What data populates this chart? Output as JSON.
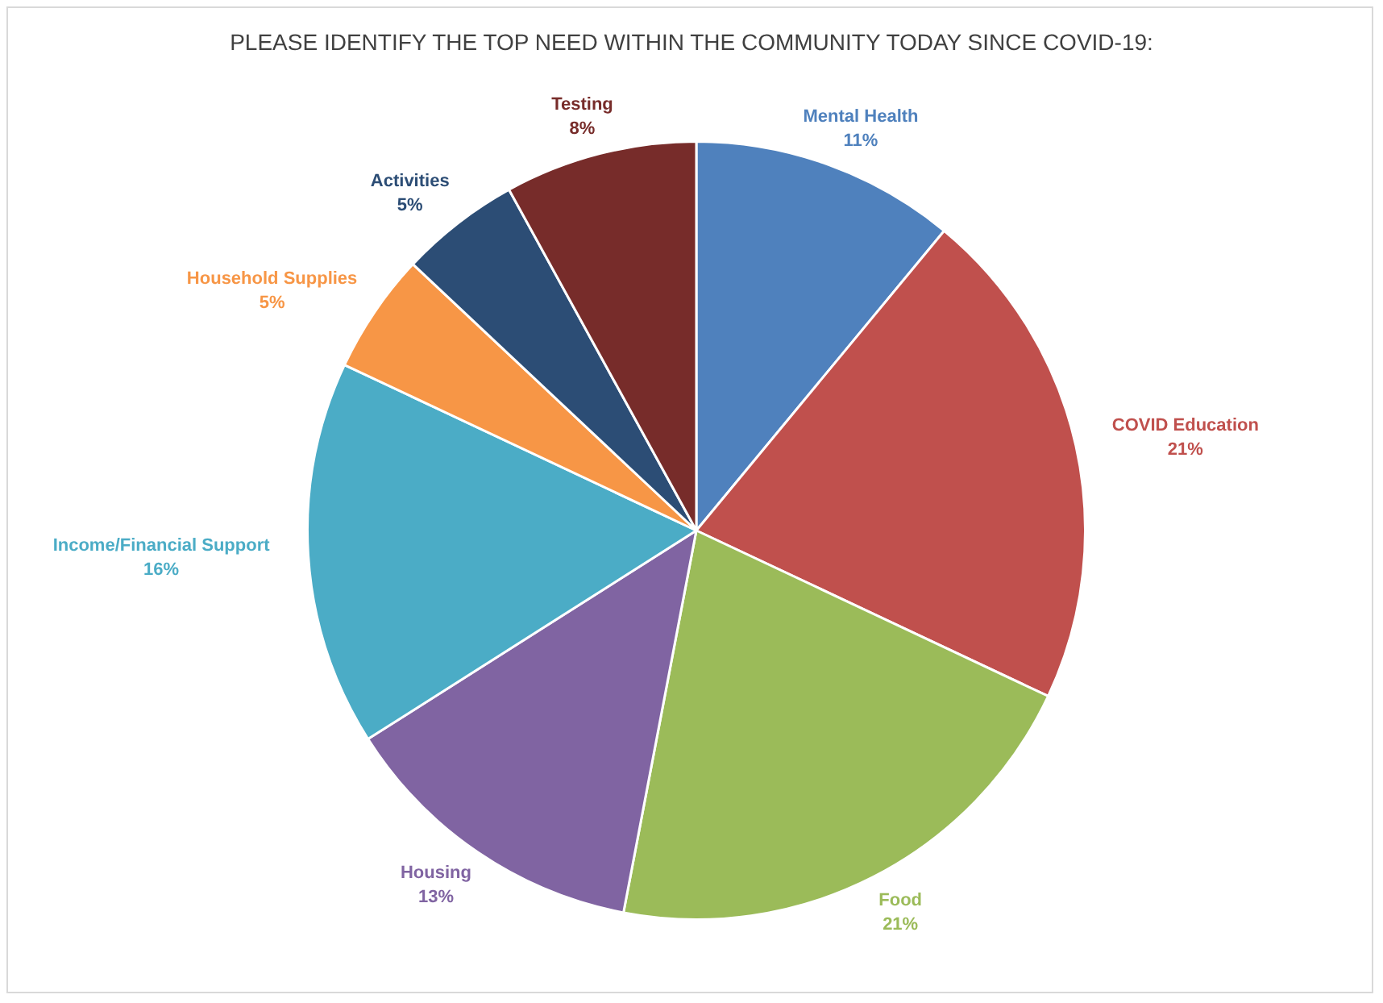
{
  "chart_data": {
    "type": "pie",
    "title": "PLEASE IDENTIFY THE TOP NEED WITHIN THE COMMUNITY TODAY SINCE COVID-19:",
    "categories": [
      "Mental Health",
      "COVID Education",
      "Food",
      "Housing",
      "Income/Financial Support",
      "Household Supplies",
      "Activities",
      "Testing"
    ],
    "values": [
      11,
      21,
      21,
      13,
      16,
      5,
      5,
      8
    ],
    "colors": [
      "#4f81bd",
      "#c0504d",
      "#9bbb59",
      "#8064a2",
      "#4bacc6",
      "#f79646",
      "#2c4d75",
      "#772c2a"
    ],
    "value_labels": [
      "11%",
      "21%",
      "21%",
      "13%",
      "16%",
      "5%",
      "5%",
      "8%"
    ],
    "legend": false
  }
}
